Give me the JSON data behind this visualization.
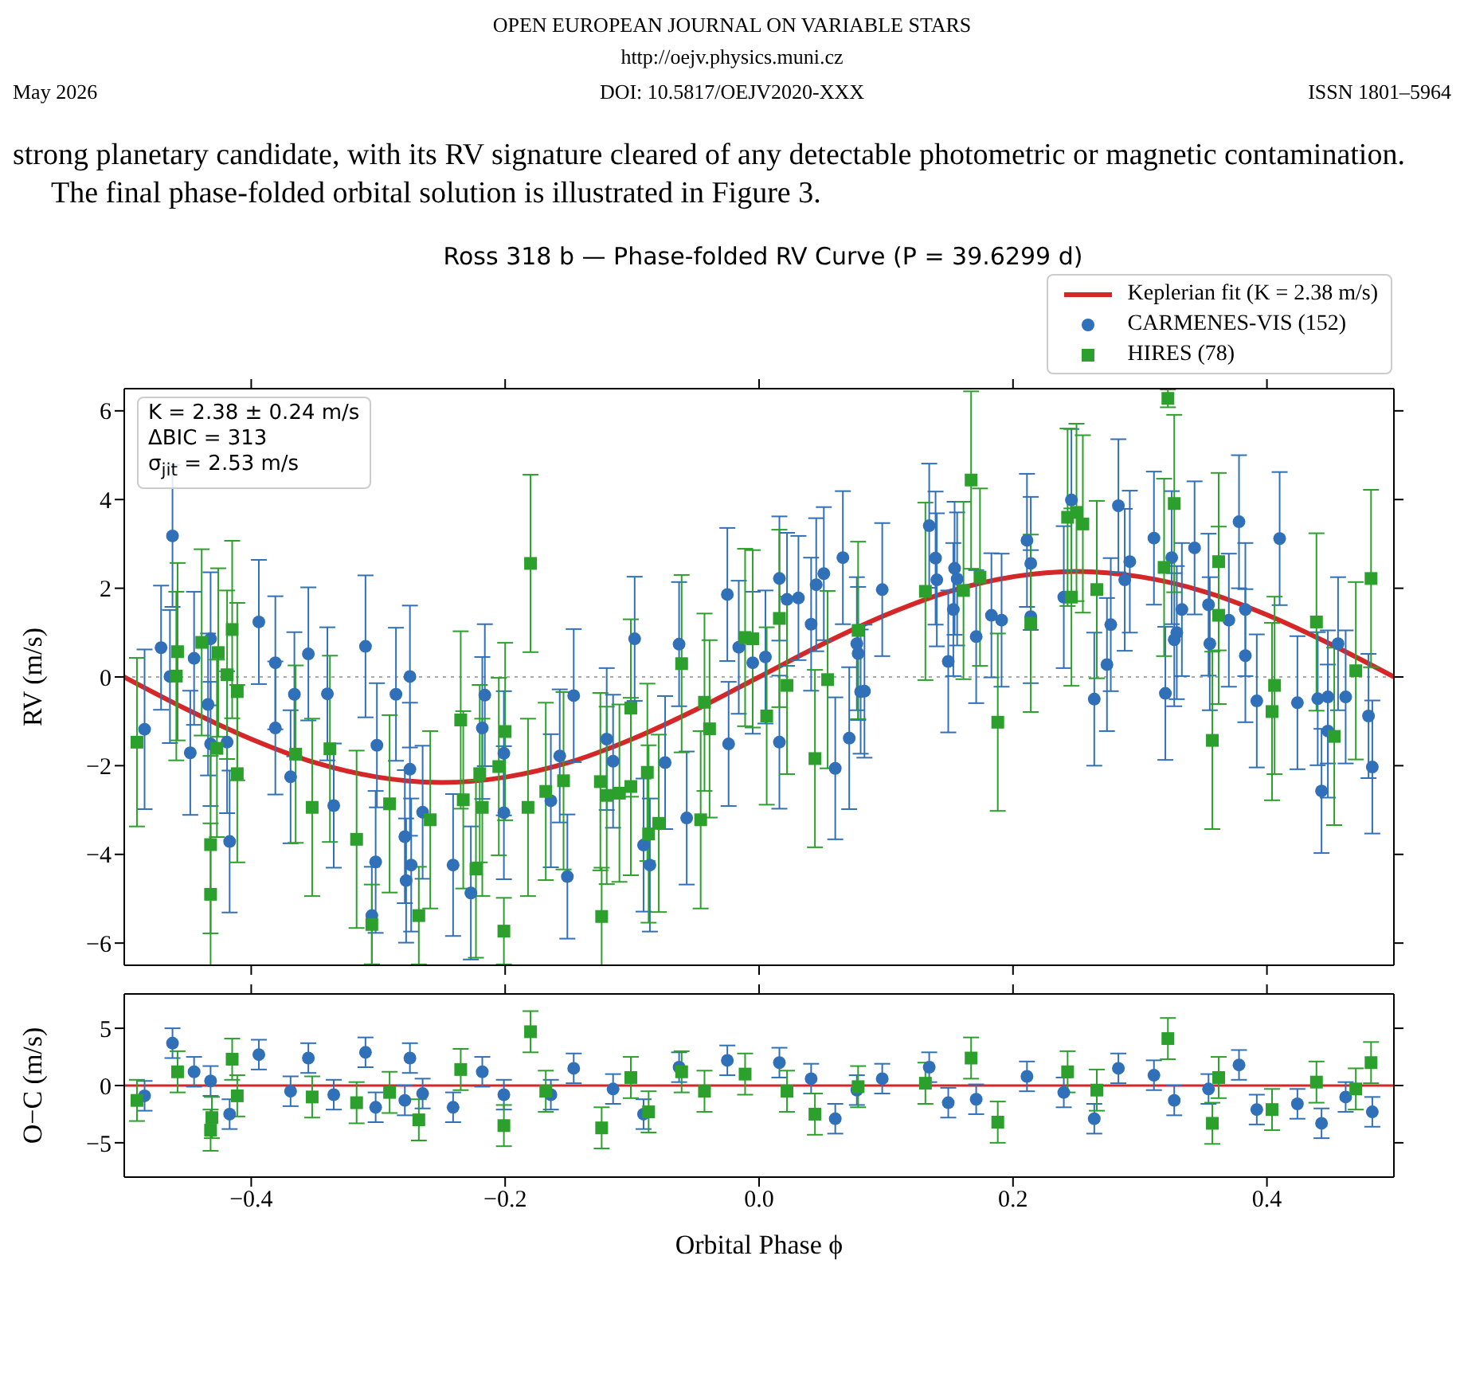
{
  "chart_data": [
    {
      "type": "scatter",
      "title": "Ross 318 b — Phase-folded RV Curve (P = 39.6299 d)",
      "ylabel": "RV (m/s)",
      "annotations": [
        "OPEN EUROPEAN JOURNAL ON VARIABLE STARS",
        "http://oejv.physics.muni.cz",
        "May 2026",
        "DOI: 10.5817/OEJV2020-XXX",
        "ISSN 1801–5964",
        "strong planetary candidate, with its RV signature cleared of any detectable photometric or magnetic contamination.",
        "The final phase-folded orbital solution is illustrated in Figure 3.",
        "K = 2.38 ± 0.24 m/s",
        "ΔBIC = 313",
        "σ$_{jit}$ = 2.53 m/s"
      ],
      "xlim": [
        -0.5,
        0.5
      ],
      "xticks": [
        -0.4,
        -0.2,
        0,
        0.2,
        0.4
      ],
      "ylim": [
        -6.5,
        6.5
      ],
      "yticks": [
        {
          "value": -6,
          "label": "−6"
        },
        {
          "value": -4,
          "label": "−4"
        },
        {
          "value": -2,
          "label": "−2"
        },
        0,
        2,
        4,
        6
      ],
      "tick_labels": "y",
      "legend": "top right",
      "ref_lines": [
        {
          "axis": "y",
          "value": 0,
          "color": "#aaaaaa",
          "line_style": "dotted"
        }
      ],
      "series": [
        {
          "name": "Keplerian fit (K = 2.38 m/s)",
          "type": "line",
          "color": "#d62728",
          "marker": "none",
          "line_style": "solid",
          "x": [
            -0.5,
            -0.45,
            -0.4,
            -0.35,
            -0.3,
            -0.25,
            -0.2,
            -0.15,
            -0.1,
            -0.05,
            0,
            0.05,
            0.1,
            0.15,
            0.2,
            0.25,
            0.3,
            0.35,
            0.4,
            0.45,
            0.5
          ],
          "values": [
            0,
            -0.74,
            -1.4,
            -1.93,
            -2.26,
            -2.38,
            -2.26,
            -1.93,
            -1.4,
            -0.74,
            0,
            0.74,
            1.4,
            1.93,
            2.26,
            2.38,
            2.26,
            1.93,
            1.4,
            0.74,
            0
          ]
        },
        {
          "name": "CARMENES-VIS (152)",
          "color": "#3070b8",
          "marker": "circle",
          "x": [
            -0.484,
            -0.471,
            -0.462,
            -0.464,
            -0.448,
            -0.445,
            -0.434,
            -0.432,
            -0.432,
            -0.419,
            -0.417,
            -0.394,
            -0.381,
            -0.381,
            -0.369,
            -0.366,
            -0.355,
            -0.34,
            -0.335,
            -0.31,
            -0.305,
            -0.302,
            -0.301,
            -0.286,
            -0.279,
            -0.275,
            -0.275,
            -0.274,
            -0.278,
            -0.265,
            -0.241,
            -0.227,
            -0.218,
            -0.216,
            -0.201,
            -0.201,
            -0.164,
            -0.157,
            -0.151,
            -0.146,
            -0.12,
            -0.115,
            -0.098,
            -0.091,
            -0.086,
            -0.074,
            -0.063,
            -0.057,
            -0.025,
            -0.024,
            -0.016,
            -0.005,
            0.005,
            0.016,
            0.016,
            0.022,
            0.031,
            0.041,
            0.045,
            0.051,
            0.06,
            0.066,
            0.071,
            0.077,
            0.078,
            0.08,
            0.083,
            0.097,
            0.134,
            0.139,
            0.14,
            0.149,
            0.153,
            0.154,
            0.156,
            0.171,
            0.183,
            0.191,
            0.211,
            0.214,
            0.214,
            0.24,
            0.246,
            0.264,
            0.274,
            0.277,
            0.283,
            0.288,
            0.292,
            0.311,
            0.32,
            0.325,
            0.327,
            0.329,
            0.333,
            0.343,
            0.354,
            0.355,
            0.37,
            0.378,
            0.383,
            0.383,
            0.392,
            0.41,
            0.424,
            0.44,
            0.443,
            0.448,
            0.448,
            0.456,
            0.462,
            0.48,
            0.483
          ],
          "values": [
            -1.18,
            0.66,
            3.18,
            0.01,
            -1.71,
            0.42,
            -0.62,
            0.86,
            -1.51,
            -1.47,
            -3.71,
            1.24,
            0.32,
            -1.15,
            -2.25,
            -0.39,
            0.52,
            -0.38,
            -2.9,
            0.69,
            -5.38,
            -4.17,
            -1.54,
            -0.39,
            -3.6,
            0.01,
            -2.08,
            -4.24,
            -4.59,
            -3.05,
            -4.24,
            -4.87,
            -1.15,
            -0.41,
            -1.72,
            -3.06,
            -2.79,
            -1.78,
            -4.5,
            -0.42,
            -1.4,
            -1.9,
            0.86,
            -3.79,
            -4.24,
            -1.93,
            0.74,
            -3.18,
            1.86,
            -1.51,
            0.67,
            0.32,
            0.45,
            2.22,
            -1.47,
            1.75,
            1.78,
            1.19,
            2.08,
            2.33,
            -2.06,
            2.69,
            -1.38,
            0.75,
            0.53,
            -0.33,
            -0.32,
            1.97,
            3.41,
            2.68,
            2.19,
            0.35,
            1.52,
            2.45,
            2.21,
            0.91,
            1.39,
            1.28,
            3.08,
            2.56,
            1.36,
            1.8,
            3.99,
            -0.5,
            0.28,
            1.18,
            3.86,
            2.19,
            2.6,
            3.13,
            -0.37,
            2.69,
            0.84,
            1,
            1.52,
            2.91,
            1.63,
            0.75,
            1.28,
            3.5,
            0.48,
            1.52,
            -0.54,
            3.12,
            -0.58,
            -0.49,
            -2.57,
            -1.22,
            -0.45,
            0.75,
            -0.45,
            -0.88,
            -2.03
          ],
          "errors": [
            1.8,
            1.4,
            1.6,
            1.5,
            1.4,
            1.5,
            1.6,
            1.5,
            1.4,
            1.6,
            1.6,
            1.4,
            1.5,
            1.5,
            1.5,
            1.4,
            1.5,
            1.5,
            1.4,
            1.6,
            1.1,
            1.6,
            1.4,
            1.5,
            1.5,
            1.6,
            1.5,
            1.5,
            1.4,
            1.5,
            1.6,
            1.5,
            1.6,
            1.6,
            1.4,
            1.5,
            1.5,
            1.5,
            1.4,
            1.5,
            1.6,
            1.5,
            1.4,
            1.5,
            1.5,
            1.5,
            1.4,
            1.5,
            1.5,
            1.4,
            1.5,
            1.6,
            1.5,
            1.4,
            1.5,
            1.5,
            1.4,
            1.5,
            1.5,
            1.5,
            1.6,
            1.5,
            1.6,
            1.5,
            1.5,
            1.4,
            1.5,
            1.5,
            1.4,
            1.5,
            1.5,
            1.6,
            1.5,
            1.5,
            1.5,
            1.5,
            1.4,
            1.5,
            1.5,
            1.5,
            1.5,
            1.6,
            1.6,
            1.5,
            1.5,
            1.5,
            1.5,
            1.6,
            1.6,
            1.5,
            1.5,
            1.5,
            1.5,
            1.5,
            1.5,
            1.5,
            1.6,
            1.5,
            1.5,
            1.5,
            1.5,
            1.5,
            1.5,
            1.5,
            1.5,
            1.5,
            1.4,
            1.5,
            1.5,
            1.5,
            1.5,
            1.4,
            1.5
          ]
        },
        {
          "name": "HIRES (78)",
          "color": "#2ca02c",
          "marker": "square",
          "x": [
            -0.49,
            -0.458,
            -0.459,
            -0.439,
            -0.432,
            -0.432,
            -0.426,
            -0.427,
            -0.415,
            -0.419,
            -0.411,
            -0.411,
            -0.365,
            -0.352,
            -0.338,
            -0.317,
            -0.305,
            -0.291,
            -0.259,
            -0.268,
            -0.235,
            -0.233,
            -0.22,
            -0.223,
            -0.218,
            -0.205,
            -0.201,
            -0.2,
            -0.18,
            -0.182,
            -0.168,
            -0.154,
            -0.125,
            -0.124,
            -0.12,
            -0.11,
            -0.101,
            -0.101,
            -0.088,
            -0.087,
            -0.079,
            -0.061,
            -0.046,
            -0.043,
            -0.039,
            -0.011,
            -0.005,
            0.006,
            0.016,
            0.022,
            0.044,
            0.054,
            0.078,
            0.131,
            0.161,
            0.167,
            0.174,
            0.188,
            0.214,
            0.243,
            0.25,
            0.246,
            0.255,
            0.266,
            0.319,
            0.327,
            0.322,
            0.357,
            0.362,
            0.362,
            0.404,
            0.406,
            0.439,
            0.453,
            0.47,
            0.482
          ],
          "values": [
            -1.47,
            0.57,
            0.02,
            0.78,
            -3.78,
            -4.9,
            0.55,
            -1.61,
            1.07,
            0.05,
            -0.33,
            -2.18,
            -1.74,
            -2.94,
            -1.62,
            -3.66,
            -5.58,
            -2.86,
            -3.22,
            -5.38,
            -0.97,
            -2.77,
            -2.18,
            -4.33,
            -2.94,
            -2.02,
            -5.73,
            -1.23,
            2.56,
            -2.94,
            -2.58,
            -2.34,
            -2.36,
            -5.4,
            -2.67,
            -2.62,
            -0.7,
            -2.47,
            -2.15,
            -3.54,
            -3.3,
            0.3,
            -3.22,
            -0.57,
            -1.17,
            0.89,
            0.86,
            -0.88,
            1.32,
            -0.19,
            -1.84,
            -0.06,
            1.05,
            1.93,
            1.95,
            4.44,
            2.25,
            -1.02,
            1.21,
            3.6,
            3.71,
            1.8,
            3.45,
            1.97,
            2.47,
            3.91,
            6.28,
            -1.43,
            2.6,
            1.39,
            -0.78,
            -0.19,
            1.24,
            -1.34,
            0.14,
            2.22
          ],
          "errors": [
            1.9,
            2,
            1.9,
            2.1,
            2,
            1.6,
            1.9,
            2,
            2,
            1.9,
            2,
            2,
            2,
            2,
            2.1,
            2,
            0.9,
            2,
            2,
            1.1,
            2,
            2,
            2,
            2,
            2,
            2,
            0.75,
            2,
            2,
            2,
            2,
            2,
            2,
            1.1,
            2,
            2,
            2,
            2,
            2,
            2,
            2,
            2,
            2,
            2,
            2,
            2,
            2,
            2,
            2,
            2,
            2,
            2,
            2,
            2,
            2,
            2,
            2,
            2,
            2,
            2,
            2,
            2,
            2,
            2,
            2,
            2,
            0.2,
            2,
            2,
            2,
            2,
            2,
            2,
            2,
            2,
            2
          ]
        }
      ]
    },
    {
      "type": "scatter",
      "xlabel": "Orbital Phase ϕ",
      "ylabel": "O−C (m/s)",
      "xlim": [
        -0.5,
        0.5
      ],
      "xticks": [
        {
          "value": -0.4,
          "label": "−0.4"
        },
        {
          "value": -0.2,
          "label": "−0.2"
        },
        {
          "value": 0,
          "label": "0.0"
        },
        {
          "value": 0.2,
          "label": "0.2"
        },
        {
          "value": 0.4,
          "label": "0.4"
        }
      ],
      "ylim": [
        -8,
        8
      ],
      "yticks": [
        {
          "value": -5,
          "label": "−5"
        },
        0,
        5
      ],
      "ref_lines": [
        {
          "axis": "y",
          "value": 0,
          "color": "#d62728",
          "line_style": "solid"
        }
      ],
      "series": [
        {
          "color": "#3070b8",
          "marker": "circle",
          "x": [
            -0.484,
            -0.462,
            -0.445,
            -0.432,
            -0.417,
            -0.394,
            -0.369,
            -0.355,
            -0.335,
            -0.31,
            -0.302,
            -0.279,
            -0.275,
            -0.265,
            -0.241,
            -0.218,
            -0.201,
            -0.164,
            -0.146,
            -0.115,
            -0.091,
            -0.063,
            -0.025,
            0.016,
            0.041,
            0.06,
            0.077,
            0.097,
            0.134,
            0.149,
            0.171,
            0.211,
            0.24,
            0.264,
            0.283,
            0.311,
            0.327,
            0.354,
            0.378,
            0.392,
            0.424,
            0.443,
            0.462,
            0.483
          ],
          "values": [
            -0.9,
            3.7,
            1.2,
            0.4,
            -2.5,
            2.7,
            -0.5,
            2.4,
            -0.8,
            2.9,
            -1.9,
            -1.3,
            2.4,
            -0.7,
            -1.9,
            1.2,
            -0.8,
            -0.8,
            1.5,
            -0.3,
            -2.5,
            1.6,
            2.2,
            2,
            0.6,
            -2.9,
            -0.4,
            0.6,
            1.6,
            -1.5,
            -1.2,
            0.8,
            -0.6,
            -2.9,
            1.5,
            0.9,
            -1.3,
            -0.3,
            1.8,
            -2.1,
            -1.6,
            -3.3,
            -1,
            -2.3
          ],
          "errors": [
            1.3,
            1.3,
            1.3,
            1.3,
            1.3,
            1.3,
            1.3,
            1.3,
            1.3,
            1.3,
            1.3,
            1.3,
            1.3,
            1.3,
            1.3,
            1.3,
            1.3,
            1.3,
            1.3,
            1.3,
            1.3,
            1.3,
            1.3,
            1.3,
            1.3,
            1.3,
            1.3,
            1.3,
            1.3,
            1.3,
            1.3,
            1.3,
            1.3,
            1.3,
            1.3,
            1.3,
            1.3,
            1.3,
            1.3,
            1.3,
            1.3,
            1.3,
            1.3,
            1.3
          ]
        },
        {
          "color": "#2ca02c",
          "marker": "square",
          "x": [
            -0.49,
            -0.458,
            -0.432,
            -0.431,
            -0.415,
            -0.411,
            -0.352,
            -0.317,
            -0.291,
            -0.268,
            -0.235,
            -0.201,
            -0.18,
            -0.168,
            -0.124,
            -0.101,
            -0.087,
            -0.061,
            -0.043,
            -0.011,
            0.022,
            0.044,
            0.078,
            0.131,
            0.167,
            0.188,
            0.243,
            0.266,
            0.322,
            0.357,
            0.362,
            0.404,
            0.439,
            0.47,
            0.482
          ],
          "values": [
            -1.3,
            1.2,
            -3.9,
            -2.8,
            2.3,
            -0.9,
            -1,
            -1.5,
            -0.6,
            -3,
            1.4,
            -3.5,
            4.7,
            -0.5,
            -3.7,
            0.7,
            -2.3,
            1.2,
            -0.5,
            1,
            -0.5,
            -2.5,
            -0.1,
            0.2,
            2.4,
            -3.2,
            1.2,
            -0.4,
            4.1,
            -3.3,
            0.7,
            -2.1,
            0.3,
            -0.3,
            2
          ],
          "errors": [
            1.8,
            1.8,
            1.8,
            1.8,
            1.8,
            1.8,
            1.8,
            1.8,
            1.8,
            1.8,
            1.8,
            1.8,
            1.8,
            1.8,
            1.8,
            1.8,
            1.8,
            1.8,
            1.8,
            1.8,
            1.8,
            1.8,
            1.8,
            1.8,
            1.8,
            1.8,
            1.8,
            1.8,
            1.8,
            1.8,
            1.8,
            1.8,
            1.8,
            1.8,
            1.8
          ]
        }
      ]
    }
  ]
}
